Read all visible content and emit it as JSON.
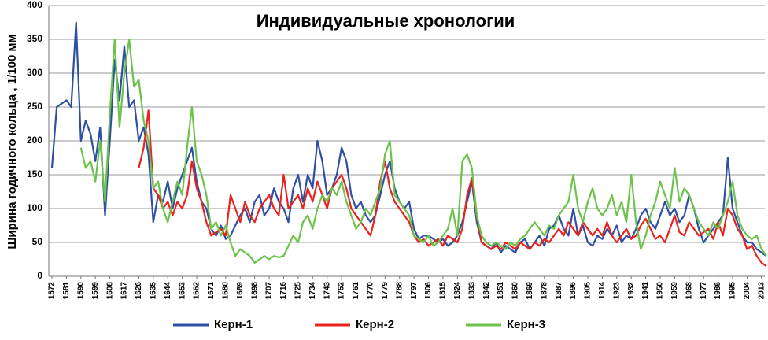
{
  "chart_data": {
    "type": "line",
    "title": "Индивидуальные хронологии",
    "y_label": "Ширина годичного кольца , 1/100 мм",
    "x": [
      1572,
      1575,
      1578,
      1581,
      1584,
      1587,
      1590,
      1593,
      1596,
      1599,
      1602,
      1605,
      1608,
      1611,
      1614,
      1617,
      1620,
      1623,
      1626,
      1629,
      1632,
      1635,
      1638,
      1641,
      1644,
      1647,
      1650,
      1653,
      1656,
      1659,
      1662,
      1665,
      1668,
      1671,
      1674,
      1677,
      1680,
      1683,
      1686,
      1689,
      1692,
      1695,
      1698,
      1701,
      1704,
      1707,
      1710,
      1713,
      1716,
      1719,
      1722,
      1725,
      1728,
      1731,
      1734,
      1737,
      1740,
      1743,
      1746,
      1749,
      1752,
      1755,
      1758,
      1761,
      1764,
      1767,
      1770,
      1773,
      1776,
      1779,
      1782,
      1785,
      1788,
      1791,
      1794,
      1797,
      1800,
      1803,
      1806,
      1809,
      1812,
      1815,
      1818,
      1821,
      1824,
      1827,
      1830,
      1833,
      1836,
      1839,
      1842,
      1845,
      1848,
      1851,
      1854,
      1857,
      1860,
      1863,
      1866,
      1869,
      1872,
      1875,
      1878,
      1881,
      1884,
      1887,
      1890,
      1893,
      1896,
      1899,
      1902,
      1905,
      1908,
      1911,
      1914,
      1917,
      1920,
      1923,
      1926,
      1929,
      1932,
      1935,
      1938,
      1941,
      1944,
      1947,
      1950,
      1953,
      1956,
      1959,
      1962,
      1965,
      1968,
      1971,
      1974,
      1977,
      1980,
      1983,
      1986,
      1989,
      1992,
      1995,
      1998,
      2001,
      2004,
      2007,
      2010,
      2013,
      2016
    ],
    "series": [
      {
        "name": "Керн-1",
        "color": "#2e4fa3",
        "values": [
          160,
          250,
          255,
          260,
          250,
          375,
          200,
          230,
          210,
          170,
          220,
          90,
          200,
          320,
          260,
          340,
          250,
          260,
          200,
          220,
          180,
          80,
          120,
          110,
          140,
          100,
          130,
          150,
          170,
          190,
          140,
          110,
          100,
          70,
          60,
          75,
          55,
          60,
          75,
          90,
          100,
          80,
          110,
          120,
          90,
          100,
          130,
          110,
          100,
          80,
          130,
          150,
          110,
          150,
          130,
          200,
          170,
          120,
          130,
          150,
          190,
          170,
          120,
          100,
          110,
          90,
          80,
          90,
          120,
          150,
          170,
          130,
          110,
          100,
          110,
          70,
          55,
          60,
          60,
          55,
          50,
          55,
          45,
          50,
          60,
          80,
          110,
          140,
          80,
          50,
          45,
          40,
          50,
          35,
          45,
          40,
          35,
          50,
          55,
          40,
          50,
          60,
          45,
          70,
          75,
          90,
          70,
          60,
          100,
          60,
          75,
          50,
          45,
          60,
          55,
          70,
          60,
          75,
          50,
          60,
          55,
          70,
          90,
          100,
          80,
          70,
          90,
          110,
          90,
          100,
          80,
          90,
          120,
          100,
          70,
          50,
          60,
          70,
          80,
          90,
          175,
          100,
          80,
          60,
          50,
          50,
          40,
          35,
          30
        ]
      },
      {
        "name": "Керн-2",
        "color": "#e8241c",
        "values": [
          null,
          null,
          null,
          null,
          null,
          null,
          null,
          null,
          null,
          null,
          null,
          null,
          null,
          null,
          null,
          null,
          null,
          null,
          160,
          190,
          245,
          130,
          120,
          100,
          110,
          90,
          110,
          100,
          120,
          170,
          130,
          110,
          80,
          60,
          65,
          70,
          60,
          120,
          100,
          80,
          110,
          90,
          80,
          100,
          110,
          120,
          100,
          90,
          150,
          100,
          110,
          120,
          100,
          130,
          110,
          140,
          120,
          100,
          130,
          140,
          150,
          130,
          100,
          90,
          80,
          70,
          60,
          90,
          140,
          170,
          130,
          110,
          100,
          90,
          80,
          60,
          50,
          55,
          45,
          50,
          55,
          45,
          60,
          55,
          50,
          70,
          120,
          145,
          90,
          50,
          45,
          40,
          45,
          40,
          50,
          45,
          40,
          50,
          45,
          40,
          50,
          45,
          55,
          50,
          60,
          70,
          60,
          80,
          70,
          60,
          80,
          70,
          60,
          70,
          60,
          80,
          60,
          50,
          60,
          70,
          55,
          60,
          75,
          85,
          70,
          55,
          60,
          50,
          70,
          90,
          65,
          60,
          80,
          70,
          60,
          65,
          70,
          55,
          80,
          60,
          100,
          90,
          70,
          60,
          40,
          45,
          30,
          20,
          15
        ]
      },
      {
        "name": "Керн-3",
        "color": "#6cc24a",
        "values": [
          null,
          null,
          null,
          null,
          null,
          null,
          190,
          160,
          170,
          140,
          200,
          110,
          240,
          350,
          220,
          300,
          350,
          280,
          290,
          230,
          200,
          130,
          140,
          100,
          80,
          110,
          140,
          120,
          190,
          250,
          170,
          150,
          120,
          70,
          80,
          60,
          75,
          50,
          30,
          40,
          35,
          30,
          20,
          25,
          30,
          25,
          30,
          28,
          30,
          45,
          60,
          50,
          80,
          90,
          70,
          100,
          120,
          110,
          130,
          120,
          140,
          110,
          90,
          70,
          80,
          100,
          90,
          110,
          130,
          180,
          200,
          120,
          110,
          100,
          90,
          60,
          55,
          50,
          60,
          45,
          50,
          60,
          70,
          100,
          60,
          170,
          180,
          160,
          90,
          60,
          50,
          45,
          50,
          45,
          40,
          50,
          45,
          55,
          60,
          70,
          80,
          70,
          60,
          75,
          70,
          90,
          100,
          110,
          150,
          100,
          80,
          110,
          130,
          100,
          90,
          100,
          120,
          90,
          110,
          80,
          150,
          80,
          40,
          60,
          90,
          110,
          140,
          120,
          100,
          160,
          110,
          130,
          120,
          100,
          80,
          70,
          60,
          80,
          70,
          90,
          110,
          140,
          90,
          70,
          60,
          55,
          60,
          40,
          30
        ]
      }
    ],
    "xlim": [
      1572,
      2017
    ],
    "xticks": [
      1572,
      1581,
      1590,
      1599,
      1608,
      1617,
      1626,
      1635,
      1644,
      1653,
      1662,
      1671,
      1680,
      1689,
      1698,
      1707,
      1716,
      1725,
      1734,
      1743,
      1752,
      1761,
      1770,
      1779,
      1788,
      1797,
      1806,
      1815,
      1824,
      1833,
      1842,
      1851,
      1860,
      1869,
      1878,
      1887,
      1896,
      1905,
      1914,
      1923,
      1932,
      1941,
      1950,
      1959,
      1968,
      1977,
      1986,
      1995,
      2004,
      2013
    ],
    "ylim": [
      0,
      400
    ],
    "yticks": [
      0,
      50,
      100,
      150,
      200,
      250,
      300,
      350,
      400
    ],
    "grid": true
  }
}
